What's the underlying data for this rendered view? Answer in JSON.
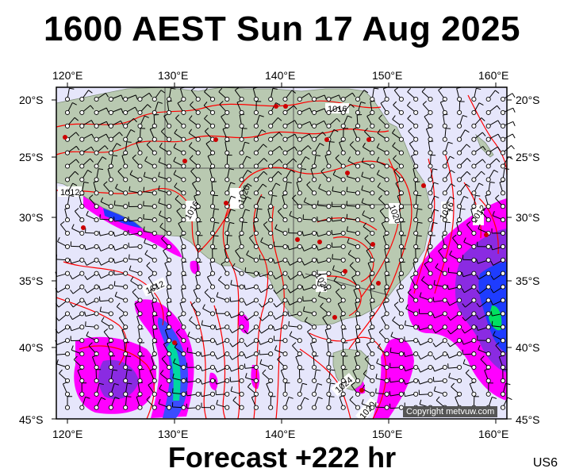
{
  "title": "1600 AEST Sun 17 Aug 2025",
  "subtitle": "Forecast +222 hr",
  "region_code": "US6",
  "copyright": "Copyright metvuw.com",
  "longitude_labels": [
    "120°E",
    "130°E",
    "140°E",
    "150°E",
    "160°E"
  ],
  "latitude_labels": [
    "20°S",
    "25°S",
    "30°S",
    "35°S",
    "40°S",
    "45°S"
  ],
  "isobar_labels": [
    "1016",
    "1012",
    "1020",
    "1016",
    "1020",
    "1016",
    "1012",
    "1024",
    "1012",
    "1024",
    "1020"
  ],
  "colors": {
    "ocean": "#e6e6fb",
    "land": "#b9c9b1",
    "isobar": "#ff0000",
    "rain_light": "#ff00ff",
    "rain_mid": "#8a2be2",
    "rain_heavy": "#1e3cff",
    "rain_extreme": "#00e0a0",
    "border": "#555555"
  }
}
